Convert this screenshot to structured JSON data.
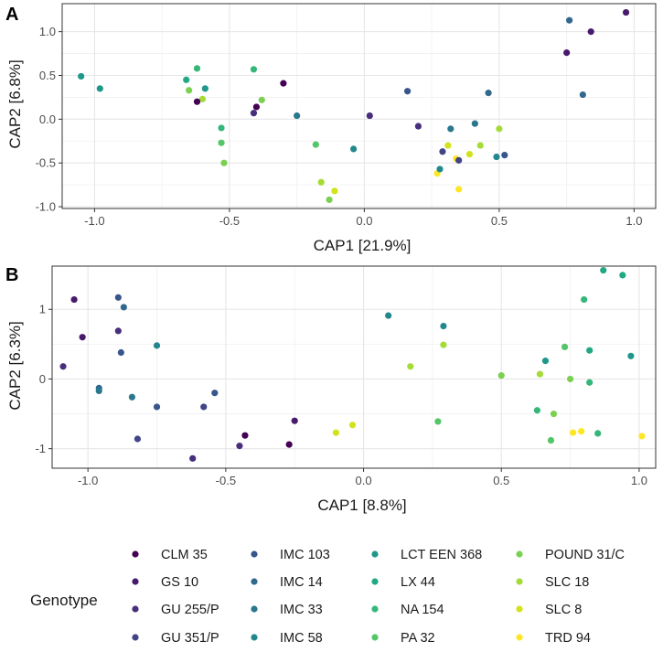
{
  "genotypes": [
    {
      "name": "CLM 35",
      "color": "#440154"
    },
    {
      "name": "GS 10",
      "color": "#481a6c"
    },
    {
      "name": "GU 255/P",
      "color": "#472f7d"
    },
    {
      "name": "GU 351/P",
      "color": "#414487"
    },
    {
      "name": "IMC 103",
      "color": "#39568c"
    },
    {
      "name": "IMC 14",
      "color": "#31688e"
    },
    {
      "name": "IMC 33",
      "color": "#2a788e"
    },
    {
      "name": "IMC 58",
      "color": "#23888e"
    },
    {
      "name": "LCT EEN 368",
      "color": "#1f988b"
    },
    {
      "name": "LX 44",
      "color": "#22a884"
    },
    {
      "name": "NA 154",
      "color": "#35b779"
    },
    {
      "name": "PA 32",
      "color": "#54c568"
    },
    {
      "name": "POUND 31/C",
      "color": "#7ad151"
    },
    {
      "name": "SLC 18",
      "color": "#a5db36"
    },
    {
      "name": "SLC 8",
      "color": "#d2e21b"
    },
    {
      "name": "TRD 94",
      "color": "#fde725"
    }
  ],
  "legend": {
    "title": "Genotype",
    "entries": [
      "CLM 35",
      "GS 10",
      "GU 255/P",
      "GU 351/P",
      "IMC 103",
      "IMC 14",
      "IMC 33",
      "IMC 58",
      "LCT EEN 368",
      "LX 44",
      "NA 154",
      "PA 32",
      "POUND 31/C",
      "SLC 18",
      "SLC 8",
      "TRD 94"
    ]
  },
  "chart_data": [
    {
      "type": "scatter",
      "panel": "A",
      "xlabel": "CAP1   [21.9%]",
      "ylabel": "CAP2   [6.8%]",
      "xlim": [
        -1.12,
        1.08
      ],
      "ylim": [
        -1.02,
        1.32
      ],
      "xticks": [
        -1.0,
        -0.5,
        0.0,
        0.5,
        1.0
      ],
      "xtick_labels": [
        "-1.0",
        "-0.5",
        "0.0",
        "0.5",
        "1.0"
      ],
      "yticks": [
        -1.0,
        -0.5,
        0.0,
        0.5,
        1.0
      ],
      "ytick_labels": [
        "-1.0",
        "-0.5",
        "0.0",
        "0.5",
        "1.0"
      ],
      "points": [
        {
          "x": 0.97,
          "y": 1.22,
          "g": 1
        },
        {
          "x": 0.84,
          "y": 1.0,
          "g": 1
        },
        {
          "x": 0.76,
          "y": 1.13,
          "g": 5
        },
        {
          "x": 0.75,
          "y": 0.76,
          "g": 1
        },
        {
          "x": 0.81,
          "y": 0.28,
          "g": 5
        },
        {
          "x": -1.05,
          "y": 0.49,
          "g": 8
        },
        {
          "x": -0.98,
          "y": 0.35,
          "g": 8
        },
        {
          "x": -0.66,
          "y": 0.45,
          "g": 9
        },
        {
          "x": -0.62,
          "y": 0.58,
          "g": 10
        },
        {
          "x": -0.65,
          "y": 0.33,
          "g": 12
        },
        {
          "x": -0.6,
          "y": 0.23,
          "g": 13
        },
        {
          "x": -0.59,
          "y": 0.35,
          "g": 8
        },
        {
          "x": -0.62,
          "y": 0.2,
          "g": 0
        },
        {
          "x": -0.41,
          "y": 0.57,
          "g": 10
        },
        {
          "x": -0.38,
          "y": 0.22,
          "g": 12
        },
        {
          "x": -0.41,
          "y": 0.07,
          "g": 2
        },
        {
          "x": -0.4,
          "y": 0.14,
          "g": 0
        },
        {
          "x": -0.3,
          "y": 0.41,
          "g": 0
        },
        {
          "x": -0.25,
          "y": 0.04,
          "g": 6
        },
        {
          "x": -0.53,
          "y": -0.1,
          "g": 10
        },
        {
          "x": -0.53,
          "y": -0.27,
          "g": 11
        },
        {
          "x": -0.52,
          "y": -0.5,
          "g": 12
        },
        {
          "x": -0.18,
          "y": -0.29,
          "g": 11
        },
        {
          "x": -0.16,
          "y": -0.72,
          "g": 13
        },
        {
          "x": -0.13,
          "y": -0.92,
          "g": 12
        },
        {
          "x": -0.11,
          "y": -0.82,
          "g": 14
        },
        {
          "x": -0.04,
          "y": -0.34,
          "g": 7
        },
        {
          "x": 0.02,
          "y": 0.04,
          "g": 2
        },
        {
          "x": 0.16,
          "y": 0.32,
          "g": 4
        },
        {
          "x": 0.2,
          "y": -0.08,
          "g": 2
        },
        {
          "x": 0.27,
          "y": -0.62,
          "g": 15
        },
        {
          "x": 0.28,
          "y": -0.57,
          "g": 7
        },
        {
          "x": 0.29,
          "y": -0.37,
          "g": 3
        },
        {
          "x": 0.31,
          "y": -0.3,
          "g": 14
        },
        {
          "x": 0.32,
          "y": -0.11,
          "g": 6
        },
        {
          "x": 0.34,
          "y": -0.45,
          "g": 15
        },
        {
          "x": 0.35,
          "y": -0.47,
          "g": 3
        },
        {
          "x": 0.35,
          "y": -0.8,
          "g": 15
        },
        {
          "x": 0.39,
          "y": -0.4,
          "g": 14
        },
        {
          "x": 0.41,
          "y": -0.05,
          "g": 6
        },
        {
          "x": 0.43,
          "y": -0.3,
          "g": 13
        },
        {
          "x": 0.46,
          "y": 0.3,
          "g": 5
        },
        {
          "x": 0.49,
          "y": -0.43,
          "g": 7
        },
        {
          "x": 0.5,
          "y": -0.11,
          "g": 13
        },
        {
          "x": 0.52,
          "y": -0.41,
          "g": 4
        }
      ]
    },
    {
      "type": "scatter",
      "panel": "B",
      "xlabel": "CAP1   [8.8%]",
      "ylabel": "CAP2   [6.3%]",
      "xlim": [
        -1.13,
        1.06
      ],
      "ylim": [
        -1.28,
        1.62
      ],
      "xticks": [
        -1.0,
        -0.5,
        0.0,
        0.5,
        1.0
      ],
      "xtick_labels": [
        "-1.0",
        "-0.5",
        "0.0",
        "0.5",
        "1.0"
      ],
      "yticks": [
        -1,
        0,
        1
      ],
      "ytick_labels": [
        "-1",
        "0",
        "1"
      ],
      "points": [
        {
          "x": -1.05,
          "y": 1.14,
          "g": 1
        },
        {
          "x": -1.02,
          "y": 0.6,
          "g": 1
        },
        {
          "x": -1.09,
          "y": 0.18,
          "g": 2
        },
        {
          "x": -0.89,
          "y": 1.17,
          "g": 4
        },
        {
          "x": -0.87,
          "y": 1.03,
          "g": 5
        },
        {
          "x": -0.89,
          "y": 0.69,
          "g": 2
        },
        {
          "x": -0.88,
          "y": 0.38,
          "g": 4
        },
        {
          "x": -0.96,
          "y": -0.13,
          "g": 5
        },
        {
          "x": -0.96,
          "y": -0.17,
          "g": 6
        },
        {
          "x": -0.84,
          "y": -0.26,
          "g": 6
        },
        {
          "x": -0.75,
          "y": 0.48,
          "g": 7
        },
        {
          "x": -0.75,
          "y": -0.4,
          "g": 4
        },
        {
          "x": -0.82,
          "y": -0.86,
          "g": 3
        },
        {
          "x": -0.58,
          "y": -0.4,
          "g": 3
        },
        {
          "x": -0.54,
          "y": -0.2,
          "g": 4
        },
        {
          "x": -0.62,
          "y": -1.14,
          "g": 2
        },
        {
          "x": -0.45,
          "y": -0.96,
          "g": 2
        },
        {
          "x": -0.43,
          "y": -0.81,
          "g": 0
        },
        {
          "x": -0.27,
          "y": -0.94,
          "g": 0
        },
        {
          "x": -0.25,
          "y": -0.6,
          "g": 1
        },
        {
          "x": -0.1,
          "y": -0.77,
          "g": 14
        },
        {
          "x": -0.04,
          "y": -0.66,
          "g": 14
        },
        {
          "x": 0.09,
          "y": 0.91,
          "g": 7
        },
        {
          "x": 0.17,
          "y": 0.18,
          "g": 13
        },
        {
          "x": 0.29,
          "y": 0.76,
          "g": 7
        },
        {
          "x": 0.29,
          "y": 0.49,
          "g": 13
        },
        {
          "x": 0.27,
          "y": -0.61,
          "g": 11
        },
        {
          "x": 0.5,
          "y": 0.05,
          "g": 12
        },
        {
          "x": 0.63,
          "y": -0.45,
          "g": 10
        },
        {
          "x": 0.64,
          "y": 0.07,
          "g": 13
        },
        {
          "x": 0.66,
          "y": 0.26,
          "g": 8
        },
        {
          "x": 0.68,
          "y": -0.88,
          "g": 11
        },
        {
          "x": 0.69,
          "y": -0.5,
          "g": 12
        },
        {
          "x": 0.73,
          "y": 0.46,
          "g": 11
        },
        {
          "x": 0.75,
          "y": 0.0,
          "g": 12
        },
        {
          "x": 0.76,
          "y": -0.77,
          "g": 15
        },
        {
          "x": 0.79,
          "y": -0.75,
          "g": 15
        },
        {
          "x": 0.8,
          "y": 1.14,
          "g": 10
        },
        {
          "x": 0.82,
          "y": 0.41,
          "g": 9
        },
        {
          "x": 0.82,
          "y": -0.05,
          "g": 10
        },
        {
          "x": 0.85,
          "y": -0.78,
          "g": 10
        },
        {
          "x": 0.87,
          "y": 1.56,
          "g": 9
        },
        {
          "x": 0.94,
          "y": 1.49,
          "g": 9
        },
        {
          "x": 0.97,
          "y": 0.33,
          "g": 8
        },
        {
          "x": 1.01,
          "y": -0.82,
          "g": 15
        }
      ]
    }
  ]
}
